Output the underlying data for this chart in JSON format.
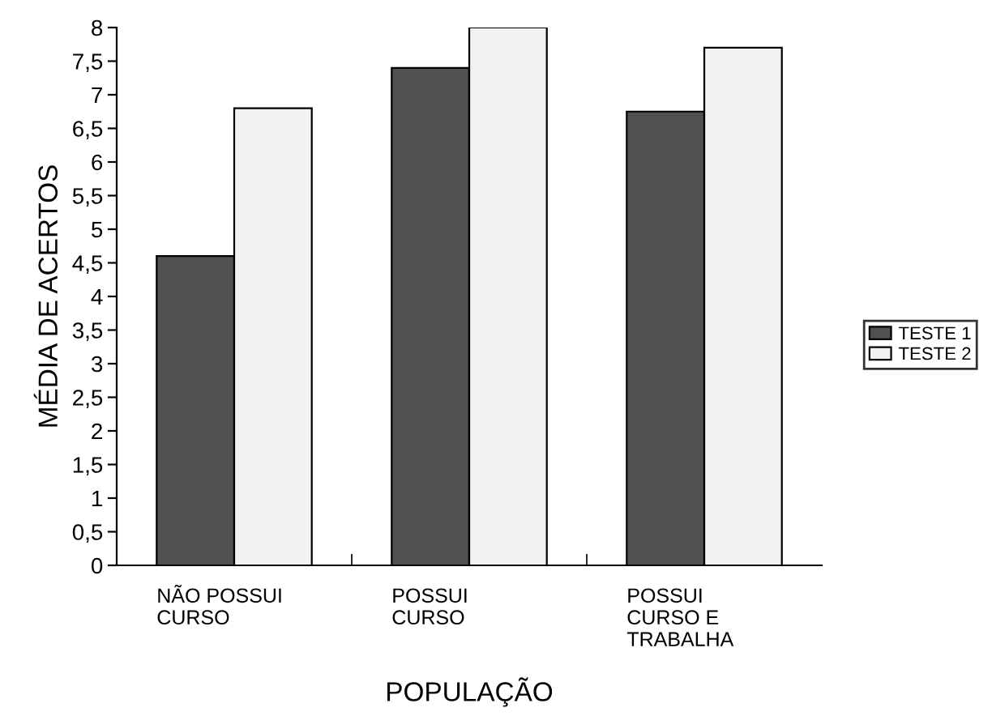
{
  "chart_data": {
    "type": "bar",
    "xlabel": "POPULAÇÃO",
    "ylabel": "MÉDIA DE ACERTOS",
    "categories": [
      "NÃO POSSUI\nCURSO",
      "POSSUI\nCURSO",
      "POSSUI\nCURSO E\nTRABALHA"
    ],
    "series": [
      {
        "name": "TESTE 1",
        "color": "#505050",
        "values": [
          4.6,
          7.4,
          6.75
        ]
      },
      {
        "name": "TESTE 2",
        "color": "#f2f2f2",
        "values": [
          6.8,
          8.0,
          7.7
        ]
      }
    ],
    "ylim": [
      0,
      8
    ],
    "yticks": [
      0,
      {
        "value": 0.5,
        "label": "0,5"
      },
      1,
      {
        "value": 1.5,
        "label": "1,5"
      },
      2,
      {
        "value": 2.5,
        "label": "2,5"
      },
      3,
      {
        "value": 3.5,
        "label": "3,5"
      },
      4,
      {
        "value": 4.5,
        "label": "4,5"
      },
      5,
      {
        "value": 5.5,
        "label": "5,5"
      },
      6,
      {
        "value": 6.5,
        "label": "6,5"
      },
      7,
      {
        "value": 7.5,
        "label": "7,5"
      },
      8
    ],
    "grid": false,
    "legend": "right"
  }
}
